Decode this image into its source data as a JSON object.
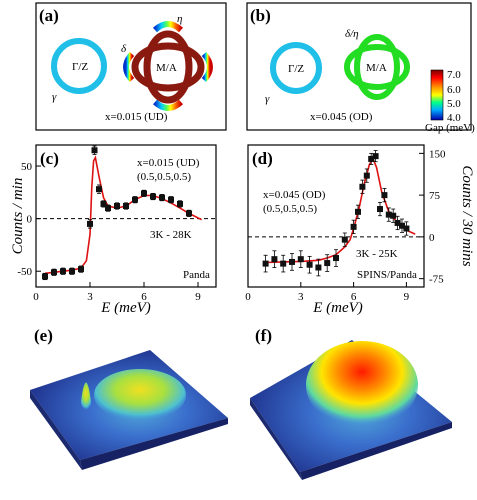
{
  "panels": {
    "a": {
      "label": "(a)",
      "center": "M/A",
      "gamma_label": "Γ/Z",
      "gamma_sym": "γ",
      "eta": "η",
      "delta": "δ",
      "doping": "x=0.015 (UD)"
    },
    "b": {
      "label": "(b)",
      "center": "M/A",
      "gamma_label": "Γ/Z",
      "gamma_sym": "γ",
      "delta_eta": "δ/η",
      "doping": "x=0.045 (OD)"
    },
    "colorbar": {
      "ticks": [
        "7.0",
        "6.0",
        "5.0",
        "4.0"
      ],
      "label": "Gap (meV)",
      "range": [
        4.0,
        7.0
      ]
    },
    "c": {
      "label": "(c)",
      "ylabel": "Counts / min",
      "xlabel": "E (meV)",
      "info": [
        "x=0.015 (UD)",
        "(0.5,0.5,0.5)"
      ],
      "temps": "3K - 28K",
      "instrument": "Panda"
    },
    "d": {
      "label": "(d)",
      "ylabel": "Counts / 30 mins",
      "xlabel": "E (meV)",
      "info": [
        "x=0.045 (OD)",
        "(0.5,0.5,0.5)"
      ],
      "temps": "3K - 25K",
      "instrument": "SPINS/Panda"
    },
    "e": {
      "label": "(e)"
    },
    "f": {
      "label": "(f)"
    }
  },
  "chart_data": [
    {
      "type": "scatter",
      "panel": "c",
      "xlabel": "E (meV)",
      "ylabel": "Counts / min",
      "xlim": [
        0,
        10
      ],
      "ylim": [
        -65,
        70
      ],
      "xticks": [
        0,
        3,
        6,
        9
      ],
      "yticks": [
        -50,
        0,
        50
      ],
      "reference_line_y": 0,
      "x": [
        0.5,
        1.0,
        1.5,
        2.0,
        2.5,
        3.0,
        3.25,
        3.5,
        3.75,
        4.0,
        4.5,
        5.0,
        5.5,
        6.0,
        6.5,
        7.0,
        7.5,
        8.0,
        8.5
      ],
      "y": [
        -55,
        -51,
        -50,
        -50,
        -48,
        -5,
        65,
        28,
        14,
        10,
        12,
        12,
        18,
        24,
        21,
        20,
        18,
        14,
        5
      ],
      "error": [
        3,
        3,
        3,
        3,
        3,
        4,
        4,
        4,
        3,
        3,
        3,
        3,
        3,
        3,
        3,
        3,
        3,
        3,
        3
      ],
      "fit": {
        "x": [
          0.5,
          1,
          1.5,
          2,
          2.5,
          2.8,
          3.0,
          3.1,
          3.2,
          3.3,
          3.5,
          3.75,
          4,
          4.5,
          5,
          5.5,
          6,
          6.5,
          7,
          7.5,
          8,
          8.5,
          9.2
        ],
        "y": [
          -52,
          -51,
          -50,
          -49,
          -47,
          -40,
          -15,
          30,
          55,
          58,
          40,
          20,
          12,
          10,
          12,
          18,
          22,
          22,
          19,
          15,
          10,
          5,
          -1
        ],
        "color": "#dd1111"
      }
    },
    {
      "type": "scatter",
      "panel": "d",
      "xlabel": "E (meV)",
      "ylabel": "Counts / 30 mins",
      "xlim": [
        0,
        10
      ],
      "ylim": [
        -90,
        165
      ],
      "xticks": [
        0,
        3,
        6,
        9
      ],
      "yticks": [
        -75,
        0,
        75,
        150
      ],
      "reference_line_y": 0,
      "x": [
        1.0,
        1.5,
        2.0,
        2.5,
        3.0,
        3.5,
        4.0,
        4.5,
        5.0,
        5.5,
        6.0,
        6.25,
        6.5,
        6.75,
        7.0,
        7.25,
        7.5,
        7.75,
        8.0,
        8.25,
        8.5,
        8.75,
        9.0
      ],
      "y": [
        -48,
        -40,
        -48,
        -45,
        -40,
        -50,
        -55,
        -47,
        -38,
        -5,
        18,
        45,
        90,
        110,
        140,
        145,
        50,
        75,
        40,
        38,
        25,
        20,
        15
      ],
      "error": [
        15,
        15,
        15,
        15,
        15,
        15,
        15,
        15,
        15,
        12,
        12,
        12,
        12,
        12,
        10,
        10,
        12,
        12,
        12,
        12,
        12,
        12,
        12
      ],
      "fit": {
        "x": [
          1,
          2,
          3,
          4,
          4.5,
          5,
          5.5,
          5.8,
          6,
          6.3,
          6.6,
          6.9,
          7.1,
          7.3,
          7.6,
          8,
          8.5,
          9,
          9.5
        ],
        "y": [
          -46,
          -45,
          -44,
          -42,
          -38,
          -32,
          -18,
          -5,
          15,
          50,
          95,
          130,
          140,
          125,
          80,
          45,
          25,
          12,
          5
        ],
        "color": "#dd1111"
      }
    }
  ]
}
